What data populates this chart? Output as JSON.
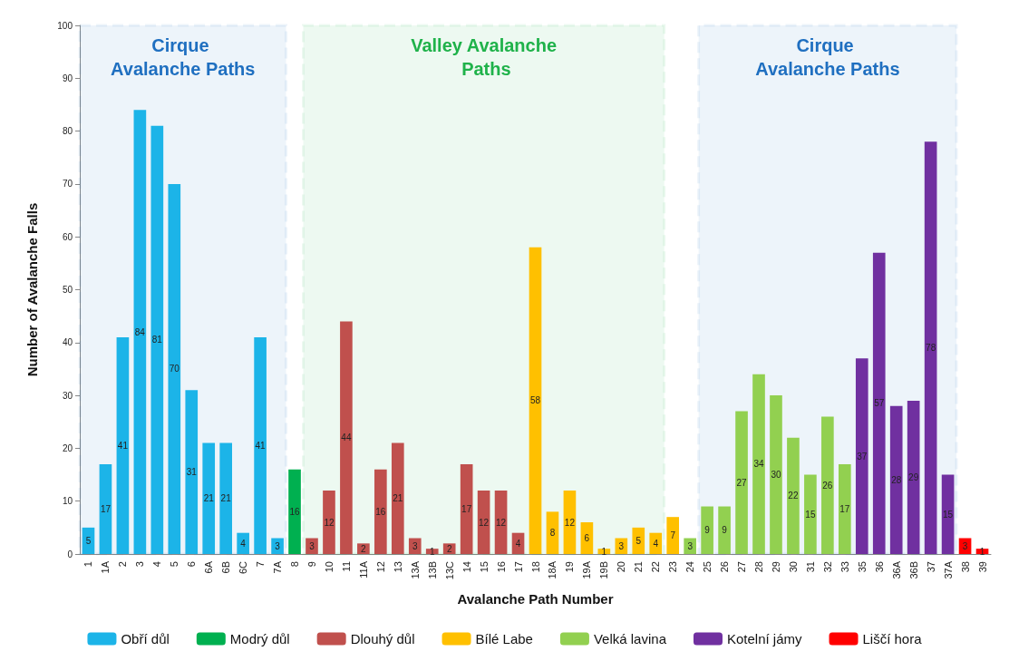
{
  "chart_data": {
    "type": "bar",
    "stacked": true,
    "xlabel": "Avalanche Path Number",
    "ylabel": "Number of Avalanche Falls",
    "categories": [
      "1",
      "1A",
      "2",
      "3",
      "4",
      "5",
      "6",
      "6A",
      "6B",
      "6C",
      "7",
      "7A",
      "8",
      "9",
      "10",
      "11",
      "11A",
      "12",
      "13",
      "13A",
      "13B",
      "13C",
      "14",
      "15",
      "16",
      "17",
      "18",
      "18A",
      "19",
      "19A",
      "19B",
      "20",
      "21",
      "22",
      "23",
      "24",
      "25",
      "26",
      "27",
      "28",
      "29",
      "30",
      "31",
      "32",
      "33",
      "35",
      "36",
      "36A",
      "36B",
      "37",
      "37A",
      "38",
      "39"
    ],
    "series": [
      {
        "name": "Obří důl",
        "color": "#1cb4e8",
        "values": [
          5,
          17,
          41,
          84,
          81,
          70,
          31,
          21,
          21,
          4,
          41,
          3,
          null,
          null,
          null,
          null,
          null,
          null,
          null,
          null,
          null,
          null,
          null,
          null,
          null,
          null,
          null,
          null,
          null,
          null,
          null,
          null,
          null,
          null,
          null,
          null,
          null,
          null,
          null,
          null,
          null,
          null,
          null,
          null,
          null,
          null,
          null,
          null,
          null,
          null,
          null,
          null,
          null
        ]
      },
      {
        "name": "Modrý důl",
        "color": "#00b050",
        "values": [
          null,
          null,
          null,
          null,
          null,
          null,
          null,
          null,
          null,
          null,
          null,
          null,
          16,
          null,
          null,
          null,
          null,
          null,
          null,
          null,
          null,
          null,
          null,
          null,
          null,
          null,
          null,
          null,
          null,
          null,
          null,
          null,
          null,
          null,
          null,
          null,
          null,
          null,
          null,
          null,
          null,
          null,
          null,
          null,
          null,
          null,
          null,
          null,
          null,
          null,
          null,
          null,
          null
        ]
      },
      {
        "name": "Dlouhý důl",
        "color": "#c0504d",
        "values": [
          null,
          null,
          null,
          null,
          null,
          null,
          null,
          null,
          null,
          null,
          null,
          null,
          null,
          3,
          12,
          44,
          2,
          16,
          21,
          3,
          1,
          2,
          17,
          12,
          12,
          4,
          null,
          null,
          null,
          null,
          null,
          null,
          null,
          null,
          null,
          null,
          null,
          null,
          null,
          null,
          null,
          null,
          null,
          null,
          null,
          null,
          null,
          null,
          null,
          null,
          null,
          null,
          null
        ]
      },
      {
        "name": "Bílé Labe",
        "color": "#ffc000",
        "values": [
          null,
          null,
          null,
          null,
          null,
          null,
          null,
          null,
          null,
          null,
          null,
          null,
          null,
          null,
          null,
          null,
          null,
          null,
          null,
          null,
          null,
          null,
          null,
          null,
          null,
          null,
          58,
          8,
          12,
          6,
          1,
          3,
          5,
          4,
          7,
          null,
          null,
          null,
          null,
          null,
          null,
          null,
          null,
          null,
          null,
          null,
          null,
          null,
          null,
          null,
          null,
          null,
          null
        ]
      },
      {
        "name": "Velká lavina",
        "color": "#92d050",
        "values": [
          null,
          null,
          null,
          null,
          null,
          null,
          null,
          null,
          null,
          null,
          null,
          null,
          null,
          null,
          null,
          null,
          null,
          null,
          null,
          null,
          null,
          null,
          null,
          null,
          null,
          null,
          null,
          null,
          null,
          null,
          null,
          null,
          null,
          null,
          null,
          3,
          9,
          9,
          27,
          34,
          30,
          22,
          15,
          26,
          17,
          null,
          null,
          null,
          null,
          null,
          null,
          null,
          null
        ]
      },
      {
        "name": "Kotelní jámy",
        "color": "#7030a0",
        "values": [
          null,
          null,
          null,
          null,
          null,
          null,
          null,
          null,
          null,
          null,
          null,
          null,
          null,
          null,
          null,
          null,
          null,
          null,
          null,
          null,
          null,
          null,
          null,
          null,
          null,
          null,
          null,
          null,
          null,
          null,
          null,
          null,
          null,
          null,
          null,
          null,
          null,
          null,
          null,
          null,
          null,
          null,
          null,
          null,
          null,
          37,
          57,
          28,
          29,
          78,
          15,
          null,
          null
        ]
      },
      {
        "name": "Liščí hora",
        "color": "#ff0000",
        "values": [
          null,
          null,
          null,
          null,
          null,
          null,
          null,
          null,
          null,
          null,
          null,
          null,
          null,
          null,
          null,
          null,
          null,
          null,
          null,
          null,
          null,
          null,
          null,
          null,
          null,
          null,
          null,
          null,
          null,
          null,
          null,
          null,
          null,
          null,
          null,
          null,
          null,
          null,
          null,
          null,
          null,
          null,
          null,
          null,
          null,
          null,
          null,
          null,
          null,
          null,
          null,
          3,
          1
        ]
      }
    ],
    "bands": [
      {
        "axis": "x",
        "from": "1",
        "to": "7A",
        "label": "Cirque Avalanche Paths",
        "color": "#1f6fc0"
      },
      {
        "axis": "x",
        "from": "9",
        "to": "22",
        "label": "Valley Avalanche Paths",
        "color": "#1fb24a"
      },
      {
        "axis": "x",
        "from": "25",
        "to": "37A",
        "label": "Cirque Avalanche Paths",
        "color": "#1f6fc0"
      }
    ],
    "ylim": [
      0,
      100
    ],
    "yticks": [
      0,
      10,
      20,
      30,
      40,
      50,
      60,
      70,
      80,
      90,
      100
    ],
    "grid": false,
    "legend": "bottom",
    "data_labels": true
  }
}
